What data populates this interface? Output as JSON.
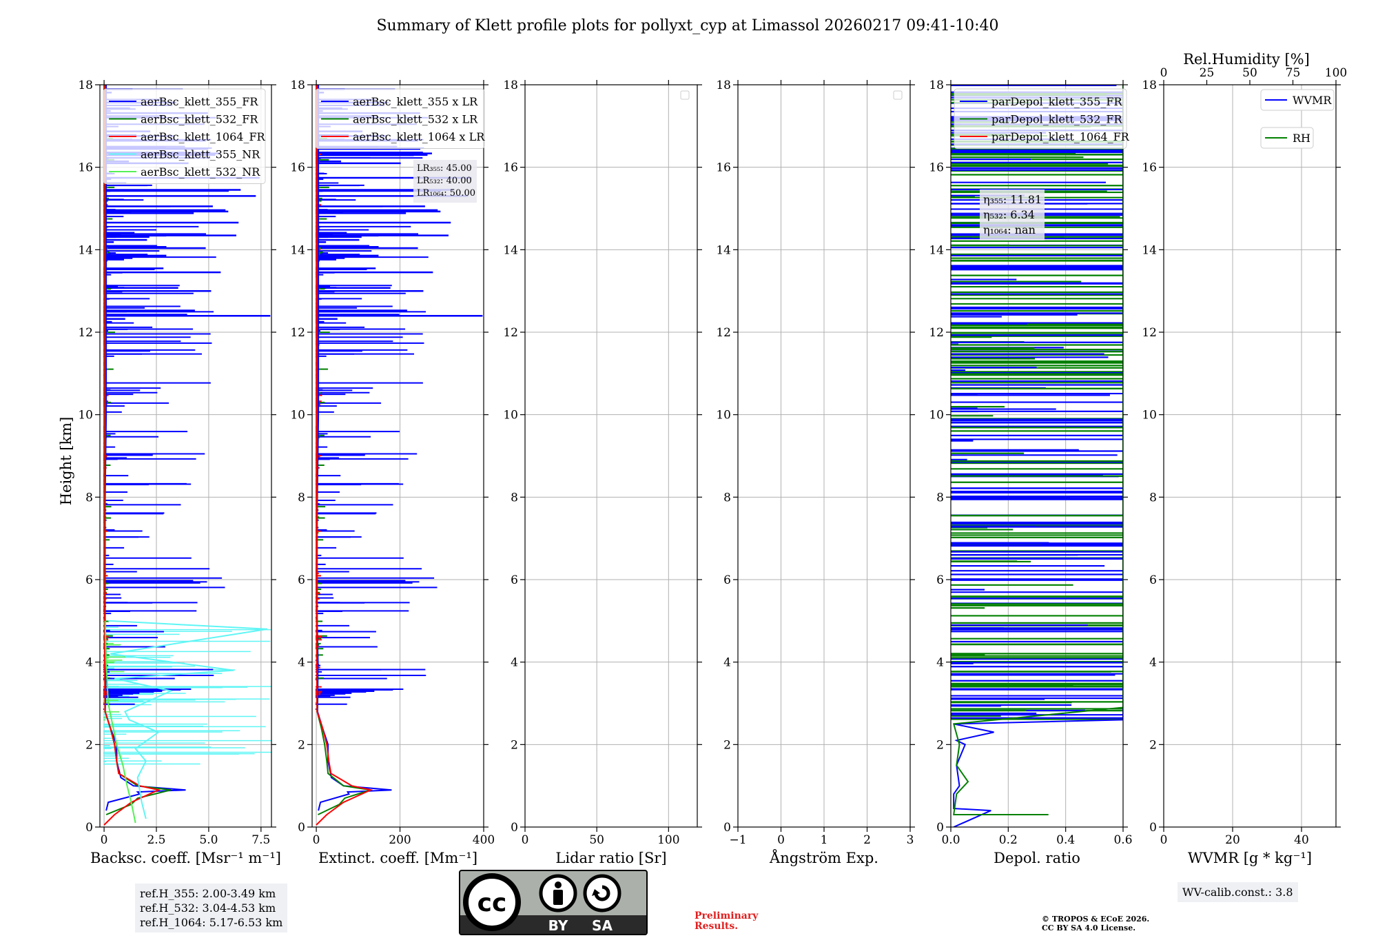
{
  "title": "Summary of Klett profile plots for pollyxt_cyp at Limassol 20260217 09:41-10:40",
  "chart_data": {
    "type": "line",
    "ylabel": "Height [km]",
    "ylim": [
      0,
      18
    ],
    "yticks": [
      0,
      2,
      4,
      6,
      8,
      10,
      12,
      14,
      16,
      18
    ],
    "panels": [
      {
        "id": "bsc",
        "xlabel": "Backsc. coeff. [Msr⁻¹ m⁻¹]",
        "xlim": [
          -0.2,
          8.0
        ],
        "xticks": [
          0,
          2.5,
          5.0,
          7.5
        ],
        "xticklabels": [
          "0",
          "2.5",
          "5.0",
          "7.5"
        ],
        "legend": [
          {
            "label": "aerBsc_klett_355_FR",
            "color": "#0000ff"
          },
          {
            "label": "aerBsc_klett_532_FR",
            "color": "#008000"
          },
          {
            "label": "aerBsc_klett_1064_FR",
            "color": "#ff0000"
          },
          {
            "label": "aerBsc_klett_355_NR",
            "color": "#5ff5f5"
          },
          {
            "label": "aerBsc_klett_532_NR",
            "color": "#55f055"
          }
        ],
        "series": [
          {
            "name": "aerBsc_klett_355_FR",
            "color": "#0000ff",
            "x": [
              0.1,
              0.2,
              1.7,
              1.6,
              3.9,
              1.4,
              0.8,
              0.6,
              0.6,
              0.3,
              0.05,
              0.1,
              0.0,
              0.1,
              0.1
            ],
            "y": [
              0.4,
              0.6,
              0.8,
              0.85,
              0.9,
              1.0,
              1.2,
              1.6,
              2.0,
              2.4,
              2.8,
              4.0,
              6.0,
              10.0,
              18.0
            ]
          },
          {
            "name": "aerBsc_klett_532_FR",
            "color": "#008000",
            "x": [
              0.1,
              1.3,
              1.6,
              3.2,
              1.6,
              0.7,
              0.6,
              0.5,
              0.3,
              0.05,
              0.05,
              0.05
            ],
            "y": [
              0.3,
              0.55,
              0.7,
              0.9,
              1.0,
              1.3,
              1.6,
              2.0,
              2.4,
              2.8,
              6.0,
              18.0
            ]
          },
          {
            "name": "aerBsc_klett_1064_FR",
            "color": "#ff0000",
            "x": [
              0.0,
              0.5,
              1.3,
              2.6,
              1.7,
              0.7,
              0.6,
              0.5,
              0.3,
              0.05,
              0.0,
              0.0
            ],
            "y": [
              0.05,
              0.3,
              0.6,
              0.9,
              1.0,
              1.3,
              1.6,
              2.0,
              2.4,
              2.8,
              6.0,
              18.0
            ]
          },
          {
            "name": "aerBsc_klett_355_NR",
            "color": "#5ff5f5",
            "x": [
              2.0,
              1.8,
              1.6,
              2.0,
              1.5,
              2.6,
              1.2,
              1.0,
              3.2,
              0.5,
              6.2,
              0.3,
              7.8,
              0.2
            ],
            "y": [
              0.2,
              0.6,
              1.2,
              1.6,
              1.9,
              2.3,
              2.6,
              2.8,
              3.3,
              3.6,
              3.8,
              4.2,
              4.8,
              5.0
            ]
          },
          {
            "name": "aerBsc_klett_532_NR",
            "color": "#55f055",
            "x": [
              1.5,
              1.3,
              1.1,
              0.9,
              0.6,
              0.4,
              0.2,
              0.1,
              0.05
            ],
            "y": [
              0.1,
              0.6,
              1.0,
              1.5,
              2.0,
              2.5,
              3.0,
              4.0,
              5.0
            ]
          }
        ]
      },
      {
        "id": "ext",
        "xlabel": "Extinct. coeff. [Mm⁻¹]",
        "xlim": [
          -10,
          400
        ],
        "xticks": [
          0,
          200,
          400
        ],
        "xticklabels": [
          "0",
          "200",
          "400"
        ],
        "legend": [
          {
            "label": "aerBsc_klett_355 x LR",
            "color": "#0000ff"
          },
          {
            "label": "aerBsc_klett_532 x LR",
            "color": "#008000"
          },
          {
            "label": "aerBsc_klett_1064 x LR",
            "color": "#ff0000"
          }
        ],
        "series": [
          {
            "name": "aerBsc_klett_355 x LR",
            "color": "#0000ff",
            "x": [
              5,
              10,
              78,
              75,
              180,
              65,
              36,
              28,
              28,
              15,
              3,
              4,
              0,
              5,
              5
            ],
            "y": [
              0.4,
              0.6,
              0.8,
              0.85,
              0.9,
              1.0,
              1.2,
              1.6,
              2.0,
              2.4,
              2.8,
              4.0,
              6.0,
              10.0,
              18.0
            ]
          },
          {
            "name": "aerBsc_klett_532 x LR",
            "color": "#008000",
            "x": [
              4,
              55,
              68,
              130,
              65,
              28,
              25,
              20,
              12,
              2,
              2,
              2
            ],
            "y": [
              0.3,
              0.55,
              0.7,
              0.9,
              1.0,
              1.3,
              1.6,
              2.0,
              2.4,
              2.8,
              6.0,
              18.0
            ]
          },
          {
            "name": "aerBsc_klett_1064 x LR",
            "color": "#ff0000",
            "x": [
              0,
              25,
              65,
              130,
              85,
              35,
              30,
              25,
              15,
              2,
              0,
              0
            ],
            "y": [
              0.05,
              0.3,
              0.6,
              0.9,
              1.0,
              1.3,
              1.6,
              2.0,
              2.4,
              2.8,
              6.0,
              18.0
            ]
          }
        ],
        "annotation": [
          "LR₃₅₅: 45.00",
          "LR₅₃₂: 40.00",
          "LR₁₀₆₄: 50.00"
        ]
      },
      {
        "id": "lr",
        "xlabel": "Lidar ratio [Sr]",
        "xlim": [
          0,
          120
        ],
        "xticks": [
          0,
          50,
          100
        ],
        "xticklabels": [
          "0",
          "50",
          "100"
        ],
        "legend": [],
        "series": []
      },
      {
        "id": "ang",
        "xlabel": "Ångström Exp.",
        "xlim": [
          -1,
          3
        ],
        "xticks": [
          -1,
          0,
          1,
          2,
          3
        ],
        "xticklabels": [
          "−1",
          "0",
          "1",
          "2",
          "3"
        ],
        "legend": [],
        "series": []
      },
      {
        "id": "depol",
        "xlabel": "Depol. ratio",
        "xlim": [
          0,
          0.6
        ],
        "xticks": [
          0,
          0.2,
          0.4,
          0.6
        ],
        "xticklabels": [
          "0.0",
          "0.2",
          "0.4",
          "0.6"
        ],
        "legend": [
          {
            "label": "parDepol_klett_355_FR",
            "color": "#0000ff"
          },
          {
            "label": "parDepol_klett_532_FR",
            "color": "#008000"
          },
          {
            "label": "parDepol_klett_1064_FR",
            "color": "#ff0000"
          }
        ],
        "series": [
          {
            "name": "parDepol_klett_355_FR",
            "color": "#0000ff",
            "x": [
              0.01,
              0.14,
              0.01,
              0.01,
              0.03,
              0.02,
              0.05,
              0.02,
              0.15,
              0.01,
              0.6,
              0.6
            ],
            "y": [
              0.0,
              0.4,
              0.45,
              0.8,
              1.0,
              1.5,
              2.0,
              2.1,
              2.3,
              2.5,
              2.6,
              18.0
            ]
          },
          {
            "name": "parDepol_klett_532_FR",
            "color": "#008000",
            "x": [
              0.34,
              0.01,
              0.02,
              0.06,
              0.02,
              0.03,
              0.01,
              0.6,
              0.6
            ],
            "y": [
              0.3,
              0.3,
              0.8,
              1.1,
              1.5,
              2.0,
              2.5,
              2.9,
              18.0
            ]
          }
        ],
        "annotation": [
          "η₃₅₅: 11.81",
          "η₅₃₂: 6.34",
          "η₁₀₆₄: nan"
        ]
      },
      {
        "id": "wvmr",
        "xlabel": "WVMR [g * kg⁻¹]",
        "xlim": [
          0,
          50
        ],
        "xticks": [
          0,
          20,
          40
        ],
        "xticklabels": [
          "0",
          "20",
          "40"
        ],
        "top_axis": {
          "label": "Rel.Humidity [%]",
          "xlim": [
            0,
            100
          ],
          "xticks": [
            0,
            25,
            50,
            75,
            100
          ],
          "xticklabels": [
            "0",
            "25",
            "50",
            "75",
            "100"
          ]
        },
        "legend": [
          {
            "label": "WVMR",
            "color": "#0000ff"
          },
          {
            "label": "RH",
            "color": "#008000"
          }
        ],
        "series": []
      }
    ]
  },
  "notes": {
    "ref_heights": [
      "ref.H_355: 2.00-3.49 km",
      "ref.H_532: 3.04-4.53 km",
      "ref.H_1064: 5.17-6.53 km"
    ],
    "wv_calib": "WV-calib.const.: 3.8",
    "preliminary": [
      "Preliminary",
      "Results."
    ],
    "copyright": [
      "© TROPOS & ECoE 2026.",
      "CC BY SA 4.0 License."
    ],
    "cc_badge": {
      "logo": "cc",
      "label_by": "BY",
      "label_sa": "SA"
    }
  },
  "colors": {
    "blue": "#0000ff",
    "green": "#008000",
    "red": "#ff0000",
    "cyan": "#5ff5f5",
    "lightgreen": "#55f055",
    "grid": "#b0b0b0",
    "prelim": "#e02020"
  }
}
